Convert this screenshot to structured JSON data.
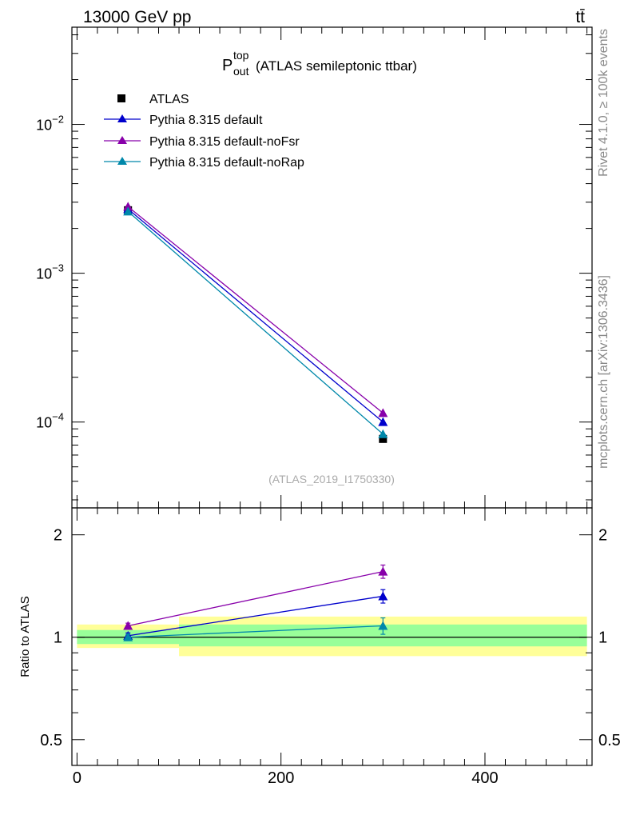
{
  "header": {
    "energy_label": "13000 GeV pp",
    "process_label": "tt̄"
  },
  "plot_title": {
    "main": "P",
    "superscript": "top",
    "subscript": "out",
    "suffix": "(ATLAS semileptonic ttbar)"
  },
  "watermark": "(ATLAS_2019_I1750330)",
  "side_labels": {
    "rivet": "Rivet 4.1.0, ≥ 100k events",
    "mcplots": "mcplots.cern.ch [arXiv:1306.3436]"
  },
  "colors": {
    "atlas": "#000000",
    "default": "#0000cc",
    "noFsr": "#8800aa",
    "noRap": "#0088aa",
    "band_yellow": "#ffff99",
    "band_green": "#99ff99"
  },
  "chart_data": [
    {
      "type": "scatter",
      "name": "main",
      "yscale": "log",
      "xlim": [
        -5,
        505
      ],
      "ylim": [
        2.65e-05,
        0.045
      ],
      "y_ticks": [
        {
          "value": 0.01,
          "mantissa": "10",
          "exp": "−2"
        },
        {
          "value": 0.001,
          "mantissa": "10",
          "exp": "−3"
        },
        {
          "value": 0.0001,
          "mantissa": "10",
          "exp": "−4"
        }
      ],
      "legend_position": "top-left",
      "series": [
        {
          "name": "ATLAS",
          "key": "atlas",
          "marker": "square",
          "x": [
            50,
            300
          ],
          "y": [
            0.00265,
            7.7e-05
          ]
        },
        {
          "name": "Pythia 8.315 default",
          "key": "default",
          "marker": "triangle",
          "x": [
            50,
            300
          ],
          "y": [
            0.0027,
            0.0001
          ]
        },
        {
          "name": "Pythia 8.315 default-noFsr",
          "key": "noFsr",
          "marker": "triangle",
          "x": [
            50,
            300
          ],
          "y": [
            0.0028,
            0.000115
          ]
        },
        {
          "name": "Pythia 8.315 default-noRap",
          "key": "noRap",
          "marker": "triangle",
          "x": [
            50,
            300
          ],
          "y": [
            0.0026,
            8.3e-05
          ]
        }
      ]
    },
    {
      "type": "line",
      "name": "ratio",
      "ylabel": "Ratio to ATLAS",
      "yscale": "log",
      "xlim": [
        -5,
        505
      ],
      "ylim": [
        0.42,
        2.4
      ],
      "x_ticks": [
        0,
        200,
        400
      ],
      "y_ticks": [
        {
          "value": 2,
          "label": "2"
        },
        {
          "value": 1,
          "label": "1"
        },
        {
          "value": 0.5,
          "label": "0.5"
        }
      ],
      "bands": [
        {
          "x": [
            0,
            100
          ],
          "yellow": [
            0.93,
            1.09
          ],
          "green": [
            0.955,
            1.05
          ]
        },
        {
          "x": [
            100,
            500
          ],
          "yellow": [
            0.88,
            1.15
          ],
          "green": [
            0.94,
            1.09
          ]
        }
      ],
      "series": [
        {
          "key": "default",
          "x": [
            50,
            300
          ],
          "y": [
            1.01,
            1.32
          ],
          "err": [
            0.02,
            0.06
          ]
        },
        {
          "key": "noFsr",
          "x": [
            50,
            300
          ],
          "y": [
            1.08,
            1.56
          ],
          "err": [
            0.02,
            0.07
          ]
        },
        {
          "key": "noRap",
          "x": [
            50,
            300
          ],
          "y": [
            1.0,
            1.08
          ],
          "err": [
            0.02,
            0.06
          ]
        }
      ]
    }
  ]
}
